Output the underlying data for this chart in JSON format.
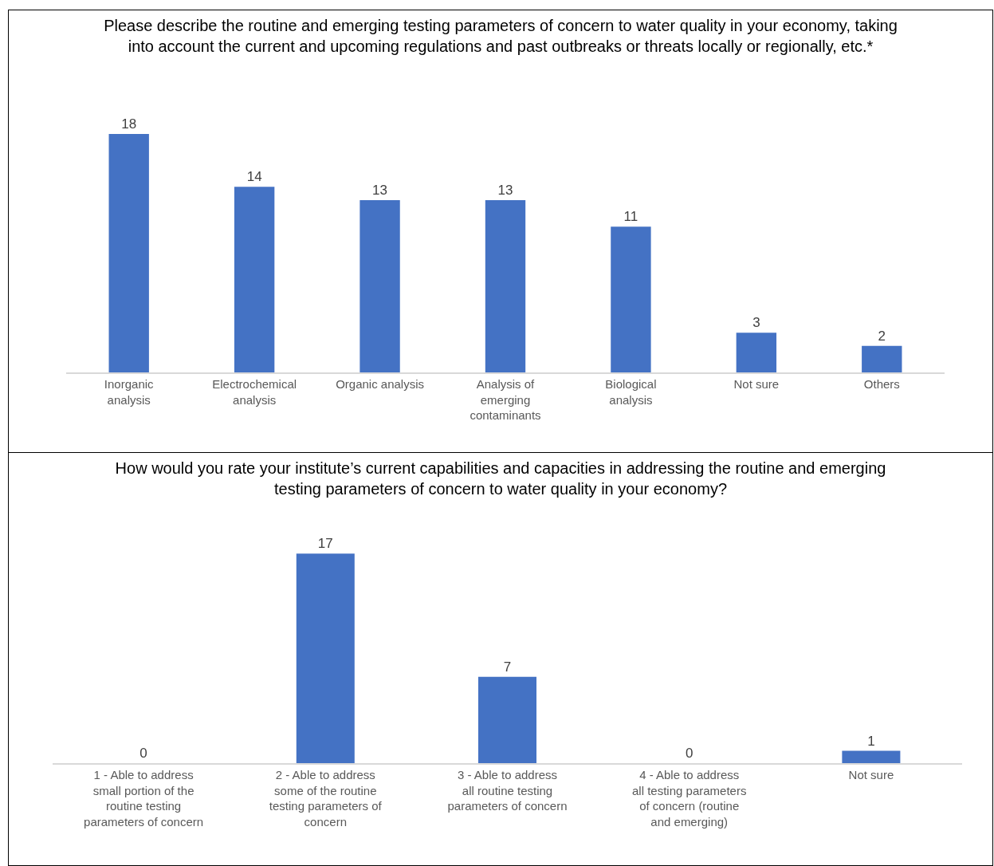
{
  "chart_data": [
    {
      "type": "bar",
      "title": "Please describe the routine and emerging testing parameters of concern to water quality in your economy, taking into account the current and upcoming regulations and past outbreaks or threats locally or regionally, etc.*",
      "categories": [
        "Inorganic analysis",
        "Electrochemical analysis",
        "Organic analysis",
        "Analysis of emerging contaminants",
        "Biological analysis",
        "Not sure",
        "Others"
      ],
      "values": [
        18,
        14,
        13,
        13,
        11,
        3,
        2
      ],
      "color": "#4472c4",
      "data_labels": true,
      "grid": false
    },
    {
      "type": "bar",
      "title": "How would you rate your institute’s current capabilities and capacities in addressing the routine and emerging testing parameters of concern to water quality in your economy?",
      "categories": [
        "1 - Able to address small portion of the routine testing parameters of concern",
        "2 - Able to address some of the routine testing parameters of concern",
        "3 - Able to address all routine testing parameters of concern",
        "4 - Able to address all testing parameters of concern (routine and emerging)",
        "Not sure"
      ],
      "values": [
        0,
        17,
        7,
        0,
        1
      ],
      "color": "#4472c4",
      "data_labels": true,
      "grid": false
    }
  ]
}
